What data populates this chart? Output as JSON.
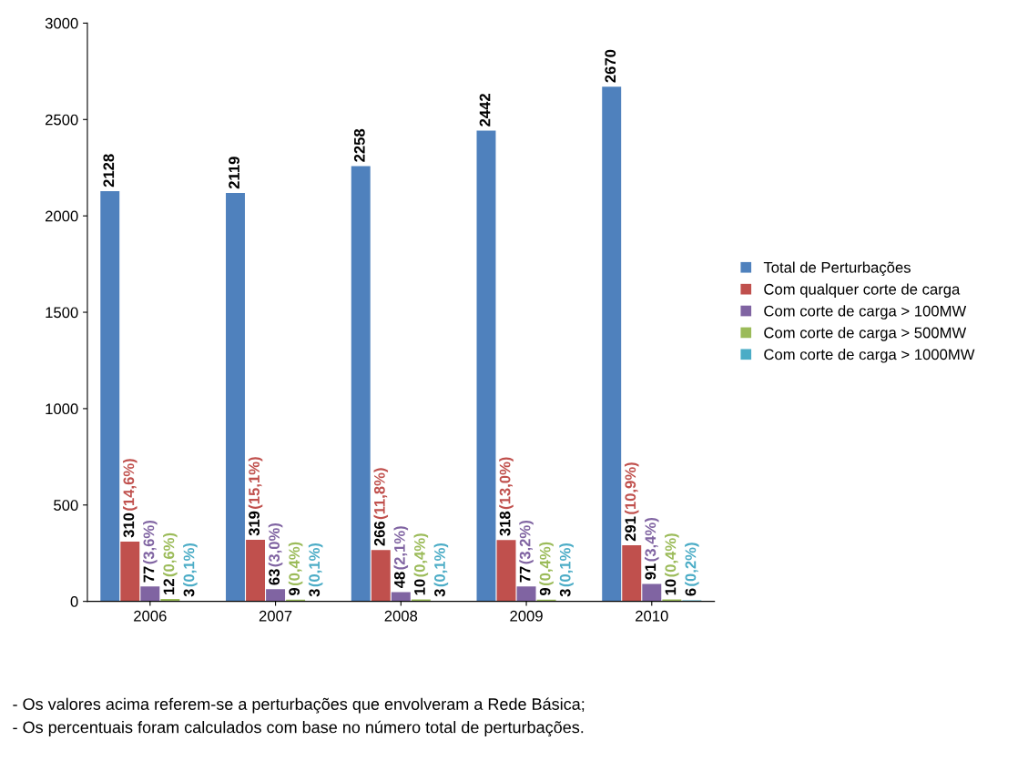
{
  "chart_data": {
    "type": "bar",
    "categories": [
      "2006",
      "2007",
      "2008",
      "2009",
      "2010"
    ],
    "series": [
      {
        "name": "Total de Perturbações",
        "color": "#4f81bd",
        "values": [
          2128,
          2119,
          2258,
          2442,
          2670
        ],
        "value_labels": [
          "2128",
          "2119",
          "2258",
          "2442",
          "2670"
        ]
      },
      {
        "name": "Com qualquer corte de carga",
        "color": "#c0504d",
        "values": [
          310,
          319,
          266,
          318,
          291
        ],
        "value_labels": [
          "310 (14,6%)",
          "319 (15,1%)",
          "266 (11,8%)",
          "318 (13,0%)",
          "291 (10,9%)"
        ]
      },
      {
        "name": "Com corte de carga > 100MW",
        "color": "#8064a2",
        "values": [
          77,
          63,
          48,
          77,
          91
        ],
        "value_labels": [
          "77 (3,6%)",
          "63 (3,0%)",
          "48 (2,1%)",
          "77 (3,2%)",
          "91 (3,4%)"
        ]
      },
      {
        "name": "Com corte de carga > 500MW",
        "color": "#9bbb59",
        "values": [
          12,
          9,
          10,
          9,
          10
        ],
        "value_labels": [
          "12 (0,6%)",
          "9 (0,4%)",
          "10 (0,4%)",
          "9 (0,4%)",
          "10 (0,4%)"
        ]
      },
      {
        "name": "Com corte de carga > 1000MW",
        "color": "#4bacc6",
        "values": [
          3,
          3,
          3,
          3,
          6
        ],
        "value_labels": [
          "3 (0,1%)",
          "3 (0,1%)",
          "3 (0,1%)",
          "3 (0,1%)",
          "6 (0,2%)"
        ]
      }
    ],
    "ylim": [
      0,
      3000
    ],
    "yticks": [
      0,
      500,
      1000,
      1500,
      2000,
      2500,
      3000
    ],
    "grid": false,
    "legend": "right",
    "annotations": [
      "- Os valores acima referem-se a perturbações que envolveram a Rede Básica;",
      "- Os percentuais foram calculados com base no número total de perturbações."
    ]
  }
}
